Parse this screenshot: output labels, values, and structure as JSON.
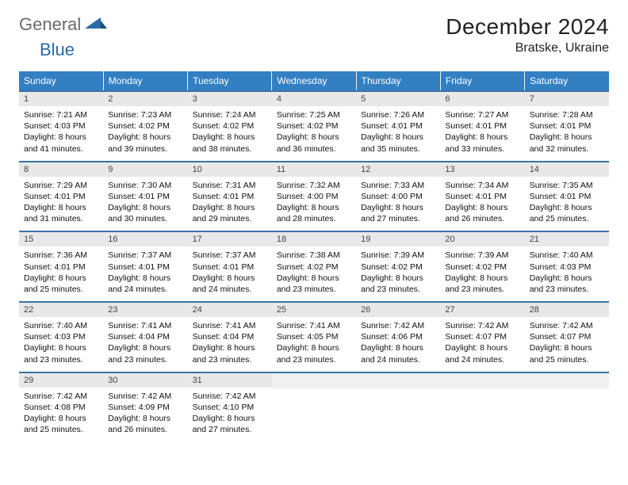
{
  "brand": {
    "part1": "General",
    "part2": "Blue"
  },
  "title": "December 2024",
  "location": "Bratske, Ukraine",
  "colors": {
    "header_bg": "#327fc2",
    "header_text": "#ffffff",
    "row_border": "#3a72a6",
    "daynum_bg": "#e8e8e8",
    "logo_gray": "#6a6a6a",
    "logo_blue": "#2b6aa8"
  },
  "weekdays": [
    "Sunday",
    "Monday",
    "Tuesday",
    "Wednesday",
    "Thursday",
    "Friday",
    "Saturday"
  ],
  "weeks": [
    [
      {
        "n": "1",
        "sr": "7:21 AM",
        "ss": "4:03 PM",
        "dl": "8 hours and 41 minutes."
      },
      {
        "n": "2",
        "sr": "7:23 AM",
        "ss": "4:02 PM",
        "dl": "8 hours and 39 minutes."
      },
      {
        "n": "3",
        "sr": "7:24 AM",
        "ss": "4:02 PM",
        "dl": "8 hours and 38 minutes."
      },
      {
        "n": "4",
        "sr": "7:25 AM",
        "ss": "4:02 PM",
        "dl": "8 hours and 36 minutes."
      },
      {
        "n": "5",
        "sr": "7:26 AM",
        "ss": "4:01 PM",
        "dl": "8 hours and 35 minutes."
      },
      {
        "n": "6",
        "sr": "7:27 AM",
        "ss": "4:01 PM",
        "dl": "8 hours and 33 minutes."
      },
      {
        "n": "7",
        "sr": "7:28 AM",
        "ss": "4:01 PM",
        "dl": "8 hours and 32 minutes."
      }
    ],
    [
      {
        "n": "8",
        "sr": "7:29 AM",
        "ss": "4:01 PM",
        "dl": "8 hours and 31 minutes."
      },
      {
        "n": "9",
        "sr": "7:30 AM",
        "ss": "4:01 PM",
        "dl": "8 hours and 30 minutes."
      },
      {
        "n": "10",
        "sr": "7:31 AM",
        "ss": "4:01 PM",
        "dl": "8 hours and 29 minutes."
      },
      {
        "n": "11",
        "sr": "7:32 AM",
        "ss": "4:00 PM",
        "dl": "8 hours and 28 minutes."
      },
      {
        "n": "12",
        "sr": "7:33 AM",
        "ss": "4:00 PM",
        "dl": "8 hours and 27 minutes."
      },
      {
        "n": "13",
        "sr": "7:34 AM",
        "ss": "4:01 PM",
        "dl": "8 hours and 26 minutes."
      },
      {
        "n": "14",
        "sr": "7:35 AM",
        "ss": "4:01 PM",
        "dl": "8 hours and 25 minutes."
      }
    ],
    [
      {
        "n": "15",
        "sr": "7:36 AM",
        "ss": "4:01 PM",
        "dl": "8 hours and 25 minutes."
      },
      {
        "n": "16",
        "sr": "7:37 AM",
        "ss": "4:01 PM",
        "dl": "8 hours and 24 minutes."
      },
      {
        "n": "17",
        "sr": "7:37 AM",
        "ss": "4:01 PM",
        "dl": "8 hours and 24 minutes."
      },
      {
        "n": "18",
        "sr": "7:38 AM",
        "ss": "4:02 PM",
        "dl": "8 hours and 23 minutes."
      },
      {
        "n": "19",
        "sr": "7:39 AM",
        "ss": "4:02 PM",
        "dl": "8 hours and 23 minutes."
      },
      {
        "n": "20",
        "sr": "7:39 AM",
        "ss": "4:02 PM",
        "dl": "8 hours and 23 minutes."
      },
      {
        "n": "21",
        "sr": "7:40 AM",
        "ss": "4:03 PM",
        "dl": "8 hours and 23 minutes."
      }
    ],
    [
      {
        "n": "22",
        "sr": "7:40 AM",
        "ss": "4:03 PM",
        "dl": "8 hours and 23 minutes."
      },
      {
        "n": "23",
        "sr": "7:41 AM",
        "ss": "4:04 PM",
        "dl": "8 hours and 23 minutes."
      },
      {
        "n": "24",
        "sr": "7:41 AM",
        "ss": "4:04 PM",
        "dl": "8 hours and 23 minutes."
      },
      {
        "n": "25",
        "sr": "7:41 AM",
        "ss": "4:05 PM",
        "dl": "8 hours and 23 minutes."
      },
      {
        "n": "26",
        "sr": "7:42 AM",
        "ss": "4:06 PM",
        "dl": "8 hours and 24 minutes."
      },
      {
        "n": "27",
        "sr": "7:42 AM",
        "ss": "4:07 PM",
        "dl": "8 hours and 24 minutes."
      },
      {
        "n": "28",
        "sr": "7:42 AM",
        "ss": "4:07 PM",
        "dl": "8 hours and 25 minutes."
      }
    ],
    [
      {
        "n": "29",
        "sr": "7:42 AM",
        "ss": "4:08 PM",
        "dl": "8 hours and 25 minutes."
      },
      {
        "n": "30",
        "sr": "7:42 AM",
        "ss": "4:09 PM",
        "dl": "8 hours and 26 minutes."
      },
      {
        "n": "31",
        "sr": "7:42 AM",
        "ss": "4:10 PM",
        "dl": "8 hours and 27 minutes."
      },
      null,
      null,
      null,
      null
    ]
  ],
  "labels": {
    "sunrise": "Sunrise:",
    "sunset": "Sunset:",
    "daylight": "Daylight:"
  }
}
